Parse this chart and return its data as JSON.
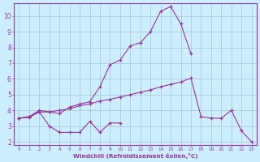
{
  "xlabel": "Windchill (Refroidissement éolien,°C)",
  "background_color": "#cceeff",
  "grid_color": "#aacccc",
  "line_color": "#993399",
  "x_values": [
    0,
    1,
    2,
    3,
    4,
    5,
    6,
    7,
    8,
    9,
    10,
    11,
    12,
    13,
    14,
    15,
    16,
    17,
    18,
    19,
    20,
    21,
    22,
    23
  ],
  "line1_x": [
    0,
    1,
    2,
    3,
    4,
    5,
    6,
    7,
    8,
    9,
    10
  ],
  "line1_y": [
    3.5,
    3.6,
    3.9,
    3.0,
    2.6,
    2.6,
    2.6,
    3.3,
    2.6,
    3.2,
    3.2
  ],
  "line2_x": [
    0,
    1,
    2,
    3,
    4,
    5,
    6,
    7,
    8,
    9,
    10,
    11,
    12,
    13,
    14,
    15,
    16,
    17
  ],
  "line2_y": [
    3.5,
    3.6,
    4.0,
    3.9,
    3.8,
    4.2,
    4.4,
    4.55,
    5.5,
    6.9,
    7.2,
    8.1,
    8.3,
    9.0,
    10.3,
    10.6,
    9.5,
    7.6
  ],
  "line3_x": [
    0,
    1,
    2,
    3,
    4,
    5,
    6,
    7,
    8,
    9,
    10,
    11,
    12,
    13,
    14,
    15,
    16,
    17,
    18,
    19,
    20,
    21,
    22,
    23
  ],
  "line3_y": [
    3.5,
    3.55,
    3.9,
    3.9,
    4.0,
    4.1,
    4.3,
    4.4,
    4.6,
    4.7,
    4.85,
    5.0,
    5.15,
    5.3,
    5.5,
    5.65,
    5.8,
    6.05,
    3.6,
    3.5,
    3.5,
    4.0,
    2.7,
    2.0
  ],
  "ylim": [
    1.8,
    10.8
  ],
  "xlim": [
    -0.5,
    23.5
  ],
  "yticks": [
    2,
    3,
    4,
    5,
    6,
    7,
    8,
    9,
    10
  ],
  "xticks": [
    0,
    1,
    2,
    3,
    4,
    5,
    6,
    7,
    8,
    9,
    10,
    11,
    12,
    13,
    14,
    15,
    16,
    17,
    18,
    19,
    20,
    21,
    22,
    23
  ]
}
